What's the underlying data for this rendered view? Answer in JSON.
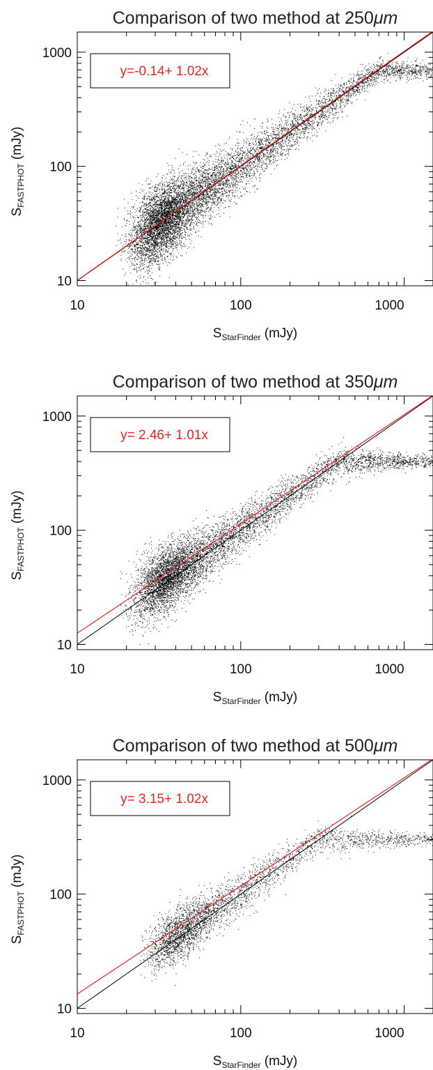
{
  "chart_data": [
    {
      "type": "scatter",
      "title_prefix": "Comparison of two method at 250",
      "title_unit": "μm",
      "xlabel_main": "S",
      "xlabel_sub": "StarFinder",
      "xlabel_unit": " (mJy)",
      "ylabel_main": "S",
      "ylabel_sub": "FASTPHOT",
      "ylabel_unit": " (mJy)",
      "x_scale": "log",
      "y_scale": "log",
      "xlim": [
        10,
        1500
      ],
      "ylim": [
        9,
        1500
      ],
      "x_ticks": [
        "10",
        "100",
        "1000"
      ],
      "y_ticks": [
        "10",
        "100",
        "1000"
      ],
      "legend_text": "y=-0.14+ 1.02x",
      "legend_placement": "top-left",
      "series": [
        {
          "kind": "reference_line",
          "color": "#000000",
          "x": [
            10,
            1500
          ],
          "y": [
            10,
            1500
          ]
        },
        {
          "kind": "fit_line",
          "color": "#e8251f",
          "intercept": -0.14,
          "slope": 1.02,
          "x": [
            10,
            1500
          ],
          "y": [
            10.06,
            1529.86
          ]
        },
        {
          "kind": "points",
          "color": "#000000",
          "center_x": [
            22,
            28,
            35,
            50,
            70,
            100,
            150,
            250,
            400,
            700
          ],
          "center_y": [
            22,
            28,
            35,
            50,
            70,
            100,
            150,
            250,
            400,
            700
          ],
          "x_range": [
            17,
            1500
          ],
          "y_range": [
            9,
            1500
          ]
        }
      ]
    },
    {
      "type": "scatter",
      "title_prefix": "Comparison of two method at 350",
      "title_unit": "μm",
      "xlabel_main": "S",
      "xlabel_sub": "StarFinder",
      "xlabel_unit": " (mJy)",
      "ylabel_main": "S",
      "ylabel_sub": "FASTPHOT",
      "ylabel_unit": " (mJy)",
      "x_scale": "log",
      "y_scale": "log",
      "xlim": [
        10,
        1500
      ],
      "ylim": [
        9,
        1500
      ],
      "x_ticks": [
        "10",
        "100",
        "1000"
      ],
      "y_ticks": [
        "10",
        "100",
        "1000"
      ],
      "legend_text": "y= 2.46+ 1.01x",
      "legend_placement": "top-left",
      "series": [
        {
          "kind": "reference_line",
          "color": "#000000",
          "x": [
            10,
            1500
          ],
          "y": [
            10,
            1500
          ]
        },
        {
          "kind": "fit_line",
          "color": "#e8251f",
          "intercept": 2.46,
          "slope": 1.01,
          "x": [
            10,
            1500
          ],
          "y": [
            12.56,
            1517.46
          ]
        },
        {
          "kind": "points",
          "color": "#000000",
          "center_x": [
            23,
            28,
            35,
            50,
            70,
            100,
            150,
            250,
            400
          ],
          "center_y": [
            26,
            31,
            38,
            52,
            72,
            102,
            152,
            252,
            402
          ],
          "x_range": [
            18,
            1500
          ],
          "y_range": [
            9,
            1500
          ]
        }
      ]
    },
    {
      "type": "scatter",
      "title_prefix": "Comparison of two method at 500",
      "title_unit": "μm",
      "xlabel_main": "S",
      "xlabel_sub": "StarFinder",
      "xlabel_unit": " (mJy)",
      "ylabel_main": "S",
      "ylabel_sub": "FASTPHOT",
      "ylabel_unit": " (mJy)",
      "x_scale": "log",
      "y_scale": "log",
      "xlim": [
        10,
        1500
      ],
      "ylim": [
        9,
        1500
      ],
      "x_ticks": [
        "10",
        "100",
        "1000"
      ],
      "y_ticks": [
        "10",
        "100",
        "1000"
      ],
      "legend_text": "y= 3.15+ 1.02x",
      "legend_placement": "top-left",
      "series": [
        {
          "kind": "reference_line",
          "color": "#000000",
          "x": [
            10,
            1500
          ],
          "y": [
            10,
            1500
          ]
        },
        {
          "kind": "fit_line",
          "color": "#e8251f",
          "intercept": 3.15,
          "slope": 1.02,
          "x": [
            10,
            1500
          ],
          "y": [
            13.35,
            1533.15
          ]
        },
        {
          "kind": "points",
          "color": "#000000",
          "center_x": [
            30,
            35,
            42,
            50,
            65,
            90,
            150,
            300
          ],
          "center_y": [
            33,
            38,
            45,
            53,
            68,
            93,
            153,
            303
          ],
          "x_range": [
            22,
            1500
          ],
          "y_range": [
            9,
            1500
          ]
        }
      ]
    }
  ]
}
